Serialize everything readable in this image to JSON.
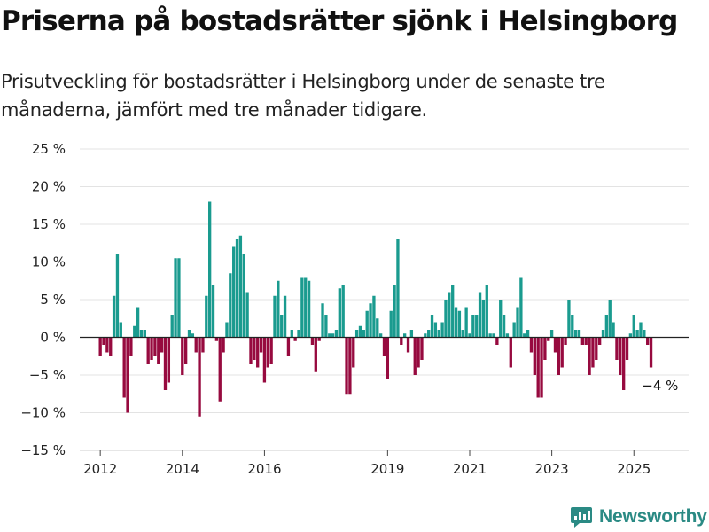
{
  "title": "Priserna på bostadsrätter sjönk i Helsingborg",
  "subtitle": "Prisutveckling för bostadsrätter i Helsingborg under de senaste tre månaderna, jämfört med tre månader tidigare.",
  "logo": {
    "text": "Newsworthy",
    "icon": "newsworthy-chart-icon"
  },
  "colors": {
    "positive": "#1a9b8f",
    "negative": "#970a3f",
    "grid": "#e3e3e3",
    "axis": "#222222",
    "logo": "#2a8a84"
  },
  "chart_data": {
    "type": "bar",
    "ylim": [
      -15,
      25
    ],
    "yticks": [
      {
        "value": 25,
        "label": "25 %"
      },
      {
        "value": 20,
        "label": "20 %"
      },
      {
        "value": 15,
        "label": "15 %"
      },
      {
        "value": 10,
        "label": "10 %"
      },
      {
        "value": 5,
        "label": "5 %"
      },
      {
        "value": 0,
        "label": "0 %"
      },
      {
        "value": -5,
        "label": "−5 %"
      },
      {
        "value": -10,
        "label": "−10 %"
      },
      {
        "value": -15,
        "label": "−15 %"
      }
    ],
    "xlim": [
      "2011-07",
      "2026-05"
    ],
    "xticks": [
      {
        "date": "2012-01",
        "label": "2012"
      },
      {
        "date": "2014-01",
        "label": "2014"
      },
      {
        "date": "2016-01",
        "label": "2016"
      },
      {
        "date": "2019-01",
        "label": "2019"
      },
      {
        "date": "2021-01",
        "label": "2021"
      },
      {
        "date": "2023-01",
        "label": "2023"
      },
      {
        "date": "2025-01",
        "label": "2025"
      }
    ],
    "grid": true,
    "annotation": {
      "text": "−4 %",
      "date": "2025-08"
    },
    "series": [
      {
        "start": "2012-01",
        "values": [
          -2.5,
          -1.0,
          -2.0,
          -2.5,
          5.5,
          11.0,
          2.0,
          -8.0,
          -10.0,
          -2.5,
          1.5,
          4.0,
          1.0,
          1.0,
          -3.5,
          -3.0,
          -2.5,
          -3.5,
          -2.0,
          -7.0,
          -6.0,
          3.0,
          10.5,
          10.5,
          -5.0,
          -3.5,
          1.0,
          0.5,
          -2.0,
          -10.5,
          -2.0,
          5.5,
          18.0,
          7.0,
          -0.5,
          -8.5,
          -2.0,
          2.0,
          8.5,
          12.0,
          13.0,
          13.5,
          11.0,
          6.0,
          -3.5,
          -3.0,
          -4.0,
          -2.0,
          -6.0,
          -4.0,
          -3.5,
          5.5,
          7.5,
          3.0,
          5.5,
          -2.5,
          1.0,
          -0.5,
          1.0,
          8.0,
          8.0,
          7.5,
          -1.0,
          -4.5,
          -0.5,
          4.5,
          3.0,
          0.5,
          0.5,
          1.0,
          6.5,
          7.0,
          -7.5,
          -7.5,
          -4.0,
          1.0,
          1.5,
          1.0,
          3.5,
          4.5,
          5.5,
          2.5,
          0.5,
          -2.5,
          -5.5,
          3.5,
          7.0,
          13.0,
          -1.0,
          0.5,
          -2.0,
          1.0,
          -5.0,
          -4.0,
          -3.0,
          0.5,
          1.0,
          3.0,
          2.0,
          1.0,
          2.0,
          5.0,
          6.0,
          7.0,
          4.0,
          3.5,
          1.0,
          4.0,
          0.5,
          3.0,
          3.0,
          6.0,
          5.0,
          7.0,
          0.5,
          0.5,
          -1.0,
          5.0,
          3.0,
          0.5,
          -4.0,
          2.0,
          4.0,
          8.0,
          0.5,
          1.0,
          -2.0,
          -5.0,
          -8.0,
          -8.0,
          -3.0,
          -0.5,
          1.0,
          -2.0,
          -5.0,
          -4.0,
          -1.0,
          5.0,
          3.0,
          1.0,
          1.0,
          -1.0,
          -1.0,
          -5.0,
          -4.0,
          -3.0,
          -1.0,
          1.0,
          3.0,
          5.0,
          2.0,
          -3.0,
          -5.0,
          -7.0,
          -3.0,
          0.5,
          3.0,
          1.0,
          2.0,
          1.0,
          -1.0,
          -4.0
        ]
      }
    ]
  }
}
